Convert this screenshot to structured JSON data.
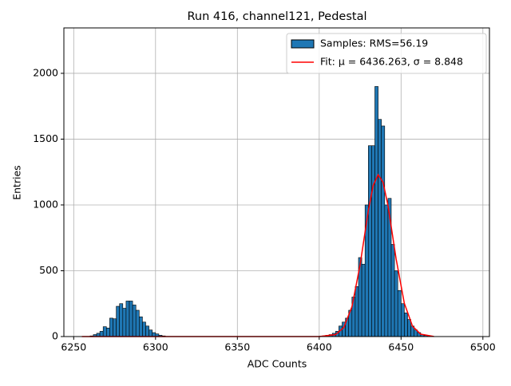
{
  "chart_data": {
    "type": "histogram",
    "title": "Run 416, channel121, Pedestal",
    "x_label": "ADC Counts",
    "y_label": "Entries",
    "bins": [
      6260,
      6262,
      6264,
      6266,
      6268,
      6270,
      6272,
      6274,
      6276,
      6278,
      6280,
      6282,
      6284,
      6286,
      6288,
      6290,
      6292,
      6294,
      6296,
      6298,
      6300,
      6302,
      6304,
      6306,
      6308,
      6310,
      6312,
      6314,
      6316,
      6318,
      6320,
      6322,
      6324,
      6326,
      6328,
      6330,
      6332,
      6334,
      6336,
      6338,
      6340,
      6342,
      6344,
      6346,
      6348,
      6350,
      6352,
      6354,
      6356,
      6358,
      6360,
      6362,
      6364,
      6366,
      6368,
      6370,
      6372,
      6374,
      6376,
      6378,
      6380,
      6382,
      6384,
      6386,
      6388,
      6390,
      6392,
      6394,
      6396,
      6398,
      6400,
      6402,
      6404,
      6406,
      6408,
      6410,
      6412,
      6414,
      6416,
      6418,
      6420,
      6422,
      6424,
      6426,
      6428,
      6430,
      6432,
      6434,
      6436,
      6438,
      6440,
      6442,
      6444,
      6446,
      6448,
      6450,
      6452,
      6454,
      6456,
      6458,
      6460,
      6462,
      6464,
      6466,
      6468,
      6470
    ],
    "series": [
      {
        "name": "Samples: RMS=56.19",
        "type": "histogram",
        "color": "#1f77b4",
        "edgecolor": "#000000",
        "values": [
          5,
          15,
          25,
          40,
          75,
          65,
          140,
          135,
          230,
          250,
          215,
          270,
          270,
          240,
          200,
          150,
          110,
          80,
          50,
          30,
          20,
          10,
          5,
          0,
          0,
          0,
          0,
          0,
          0,
          0,
          0,
          0,
          0,
          0,
          0,
          0,
          0,
          0,
          0,
          0,
          0,
          0,
          0,
          0,
          0,
          0,
          0,
          0,
          0,
          0,
          0,
          0,
          0,
          0,
          0,
          0,
          0,
          0,
          0,
          0,
          0,
          0,
          0,
          0,
          0,
          0,
          0,
          0,
          0,
          0,
          3,
          5,
          10,
          15,
          25,
          40,
          80,
          110,
          140,
          200,
          300,
          380,
          600,
          550,
          1000,
          1450,
          1450,
          1900,
          1650,
          1600,
          1000,
          1050,
          700,
          500,
          350,
          250,
          180,
          130,
          80,
          50,
          30,
          15,
          8,
          4,
          2
        ]
      },
      {
        "name": "Fit: μ = 6436.263, σ = 8.848",
        "type": "line",
        "color": "#ff0000",
        "x": [
          6255,
          6300,
          6350,
          6400,
          6410,
          6415,
          6420,
          6425,
          6430,
          6433,
          6436,
          6439,
          6442,
          6447,
          6452,
          6457,
          6462,
          6470
        ],
        "values": [
          0,
          0,
          0,
          0.3,
          15,
          68.5,
          227,
          547,
          957,
          1149,
          1230,
          1172,
          997,
          589,
          253,
          79,
          18,
          0.9
        ]
      }
    ],
    "xlim": [
      6244,
      6504
    ],
    "ylim": [
      0,
      2345
    ],
    "xticks": [
      6250,
      6300,
      6350,
      6400,
      6450,
      6500
    ],
    "yticks": [
      0,
      500,
      1000,
      1500,
      2000
    ],
    "grid": true,
    "legend": "upper right"
  }
}
